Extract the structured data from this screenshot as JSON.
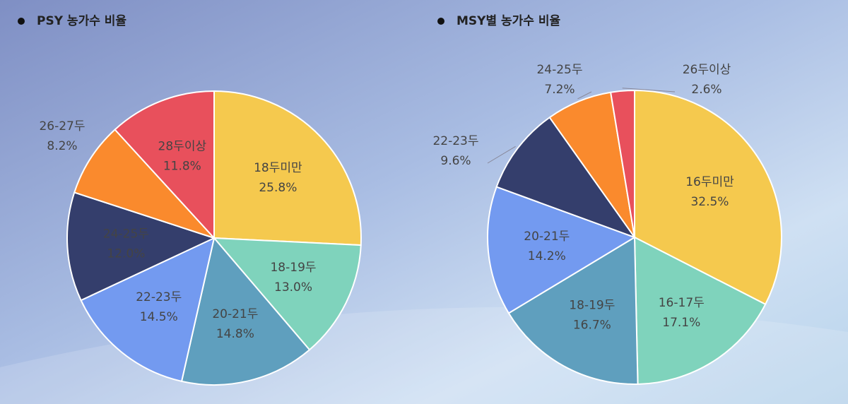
{
  "chart_data": [
    {
      "type": "pie",
      "title": "PSY 농가수 비율",
      "categories": [
        "18두미만",
        "18-19두",
        "20-21두",
        "22-23두",
        "24-25두",
        "26-27두",
        "28두이상"
      ],
      "values": [
        25.8,
        13.0,
        14.8,
        14.5,
        12.0,
        8.2,
        11.8
      ],
      "value_labels": [
        "25.8%",
        "13.0%",
        "14.8%",
        "14.5%",
        "12.0%",
        "8.2%",
        "11.8%"
      ],
      "colors": [
        "#f5c94e",
        "#7fd3bc",
        "#5f9fbe",
        "#739af0",
        "#343e6c",
        "#fa8a2d",
        "#e8505c"
      ]
    },
    {
      "type": "pie",
      "title": "MSY별 농가수 비율",
      "categories": [
        "16두미만",
        "16-17두",
        "18-19두",
        "20-21두",
        "22-23두",
        "24-25두",
        "26두이상"
      ],
      "values": [
        32.5,
        17.1,
        16.7,
        14.2,
        9.6,
        7.2,
        2.6
      ],
      "value_labels": [
        "32.5%",
        "17.1%",
        "16.7%",
        "14.2%",
        "9.6%",
        "7.2%",
        "2.6%"
      ],
      "colors": [
        "#f5c94e",
        "#7fd3bc",
        "#5f9fbe",
        "#739af0",
        "#343e6c",
        "#fa8a2d",
        "#e8505c"
      ]
    }
  ]
}
